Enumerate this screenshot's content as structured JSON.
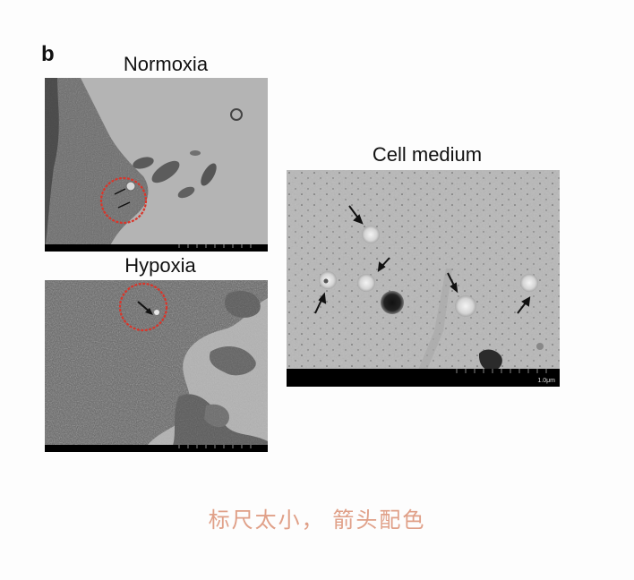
{
  "figure": {
    "panel_letter": "b",
    "panels": {
      "normoxia": {
        "title": "Normoxia"
      },
      "hypoxia": {
        "title": "Hypoxia"
      },
      "cell_medium": {
        "title": "Cell medium",
        "scale_bar_label": "1.0μm"
      }
    }
  },
  "annotation": {
    "text": "标尺太小， 箭头配色",
    "color": "#e0a088"
  },
  "colors": {
    "circle_marker": "#d9352a",
    "arrow": "#111111",
    "scale_bar": "#000000"
  }
}
